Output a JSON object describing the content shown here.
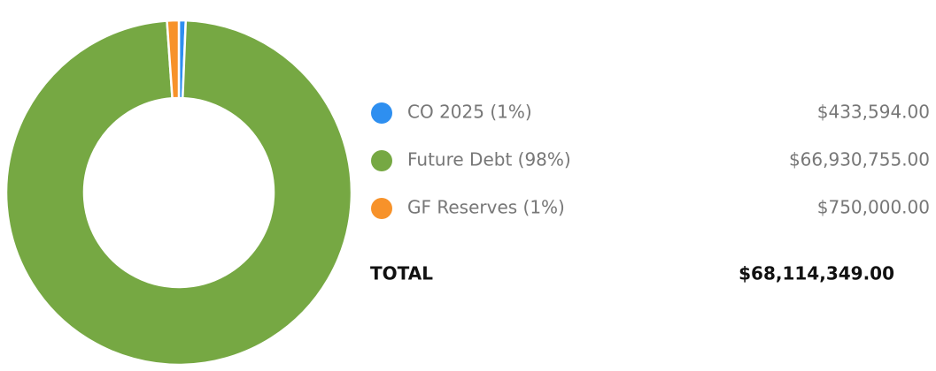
{
  "chart_data": {
    "type": "donut",
    "categories": [
      "CO 2025 (1%)",
      "Future Debt (98%)",
      "GF Reserves (1%)"
    ],
    "values": [
      433594,
      66930755,
      750000
    ],
    "value_labels": [
      "$433,594.00",
      "$66,930,755.00",
      "$750,000.00"
    ],
    "colors": [
      "#2e8ff0",
      "#76a843",
      "#f7922a"
    ],
    "total": {
      "label": "TOTAL",
      "value": 68114349,
      "value_label": "$68,114,349.00"
    }
  }
}
